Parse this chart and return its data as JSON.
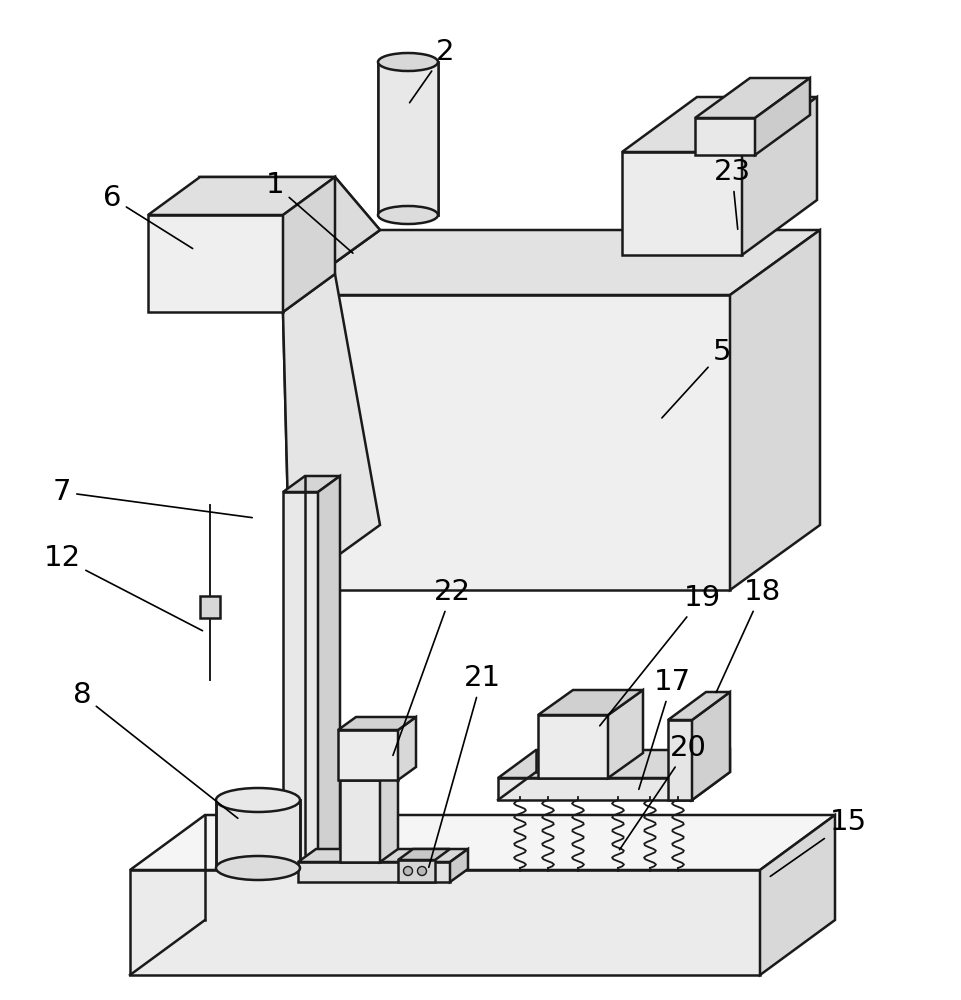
{
  "bg_color": "#ffffff",
  "line_color": "#1a1a1a",
  "line_width": 1.8,
  "figsize": [
    9.62,
    10.0
  ],
  "dpi": 100,
  "label_fontsize": 21,
  "label_color": "#000000",
  "labels_img": {
    "1": [
      275,
      185,
      355,
      255
    ],
    "2": [
      445,
      52,
      408,
      105
    ],
    "5": [
      722,
      352,
      660,
      420
    ],
    "6": [
      112,
      198,
      195,
      250
    ],
    "7": [
      62,
      492,
      255,
      518
    ],
    "8": [
      82,
      695,
      240,
      820
    ],
    "12": [
      62,
      558,
      205,
      632
    ],
    "15": [
      848,
      822,
      768,
      878
    ],
    "17": [
      672,
      682,
      638,
      792
    ],
    "18": [
      762,
      592,
      715,
      695
    ],
    "19": [
      702,
      598,
      598,
      728
    ],
    "20": [
      688,
      748,
      618,
      852
    ],
    "21": [
      482,
      678,
      428,
      870
    ],
    "22": [
      452,
      592,
      392,
      758
    ],
    "23": [
      732,
      172,
      738,
      232
    ]
  }
}
